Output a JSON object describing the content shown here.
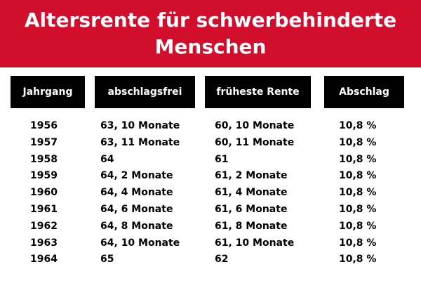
{
  "header": {
    "title": "Altersrente für schwerbehinderte Menschen"
  },
  "table": {
    "columns": [
      "Jahrgang",
      "abschlagsfrei",
      "früheste Rente",
      "Abschlag"
    ],
    "rows": [
      [
        "1956",
        "63, 10 Monate",
        "60, 10 Monate",
        "10,8 %"
      ],
      [
        "1957",
        "63, 11 Monate",
        "60, 11 Monate",
        "10,8 %"
      ],
      [
        "1958",
        "64",
        "61",
        "10,8 %"
      ],
      [
        "1959",
        "64, 2 Monate",
        "61, 2 Monate",
        "10,8 %"
      ],
      [
        "1960",
        "64, 4 Monate",
        "61, 4 Monate",
        "10,8 %"
      ],
      [
        "1961",
        "64, 6 Monate",
        "61, 6 Monate",
        "10,8 %"
      ],
      [
        "1962",
        "64, 8 Monate",
        "61, 8 Monate",
        "10,8 %"
      ],
      [
        "1963",
        "64, 10 Monate",
        "61, 10 Monate",
        "10,8 %"
      ],
      [
        "1964",
        "65",
        "62",
        "10,8 %"
      ]
    ]
  }
}
